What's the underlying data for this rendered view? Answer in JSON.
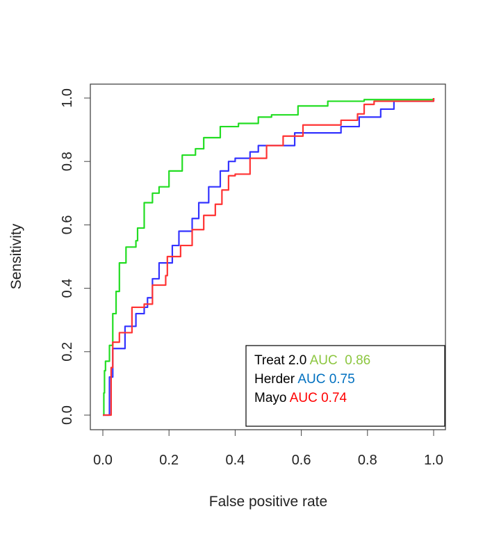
{
  "chart_data": {
    "type": "line",
    "title": "",
    "xlabel": "False positive rate",
    "ylabel": "Sensitivity",
    "xlim": [
      0,
      1
    ],
    "ylim": [
      0,
      1
    ],
    "xticks": [
      "0.0",
      "0.2",
      "0.4",
      "0.6",
      "0.8",
      "1.0"
    ],
    "yticks": [
      "0.0",
      "0.2",
      "0.4",
      "0.6",
      "0.8",
      "1.0"
    ],
    "grid": false,
    "legend_position": "bottom-right",
    "legend": [
      {
        "label": "Treat 2.0",
        "auc_text": "AUC  0.86",
        "auc_color": "#8cc63f"
      },
      {
        "label": "Herder",
        "auc_text": "AUC 0.75",
        "auc_color": "#0070c0"
      },
      {
        "label": "Mayo",
        "auc_text": "AUC 0.74",
        "auc_color": "#ff0000"
      }
    ],
    "series": [
      {
        "name": "Treat 2.0",
        "color": "#22dd22",
        "x": [
          0,
          0.003,
          0.005,
          0.008,
          0.02,
          0.03,
          0.04,
          0.05,
          0.07,
          0.1,
          0.105,
          0.125,
          0.15,
          0.17,
          0.2,
          0.24,
          0.28,
          0.305,
          0.355,
          0.41,
          0.47,
          0.51,
          0.59,
          0.68,
          0.79,
          1.0
        ],
        "y": [
          0,
          0.07,
          0.14,
          0.17,
          0.22,
          0.32,
          0.39,
          0.48,
          0.53,
          0.55,
          0.59,
          0.67,
          0.7,
          0.72,
          0.77,
          0.82,
          0.84,
          0.875,
          0.91,
          0.92,
          0.94,
          0.947,
          0.975,
          0.99,
          0.995,
          1.0
        ]
      },
      {
        "name": "Herder",
        "color": "#3333ff",
        "x": [
          0,
          0.02,
          0.03,
          0.067,
          0.1,
          0.125,
          0.135,
          0.15,
          0.17,
          0.21,
          0.23,
          0.27,
          0.29,
          0.32,
          0.355,
          0.38,
          0.4,
          0.445,
          0.47,
          0.58,
          0.72,
          0.775,
          0.84,
          0.88,
          1.0
        ],
        "y": [
          0,
          0.12,
          0.21,
          0.28,
          0.32,
          0.34,
          0.37,
          0.43,
          0.48,
          0.535,
          0.58,
          0.62,
          0.67,
          0.72,
          0.77,
          0.8,
          0.81,
          0.83,
          0.85,
          0.89,
          0.91,
          0.94,
          0.965,
          0.99,
          1.0
        ]
      },
      {
        "name": "Mayo",
        "color": "#ff3333",
        "x": [
          0,
          0.025,
          0.03,
          0.05,
          0.088,
          0.125,
          0.15,
          0.19,
          0.195,
          0.235,
          0.27,
          0.305,
          0.34,
          0.36,
          0.38,
          0.4,
          0.445,
          0.495,
          0.545,
          0.605,
          0.72,
          0.77,
          0.79,
          0.82,
          1.0
        ],
        "y": [
          0,
          0.15,
          0.23,
          0.26,
          0.34,
          0.35,
          0.41,
          0.44,
          0.5,
          0.535,
          0.585,
          0.63,
          0.665,
          0.71,
          0.755,
          0.76,
          0.81,
          0.85,
          0.88,
          0.915,
          0.93,
          0.95,
          0.98,
          0.99,
          1.0
        ]
      }
    ]
  }
}
